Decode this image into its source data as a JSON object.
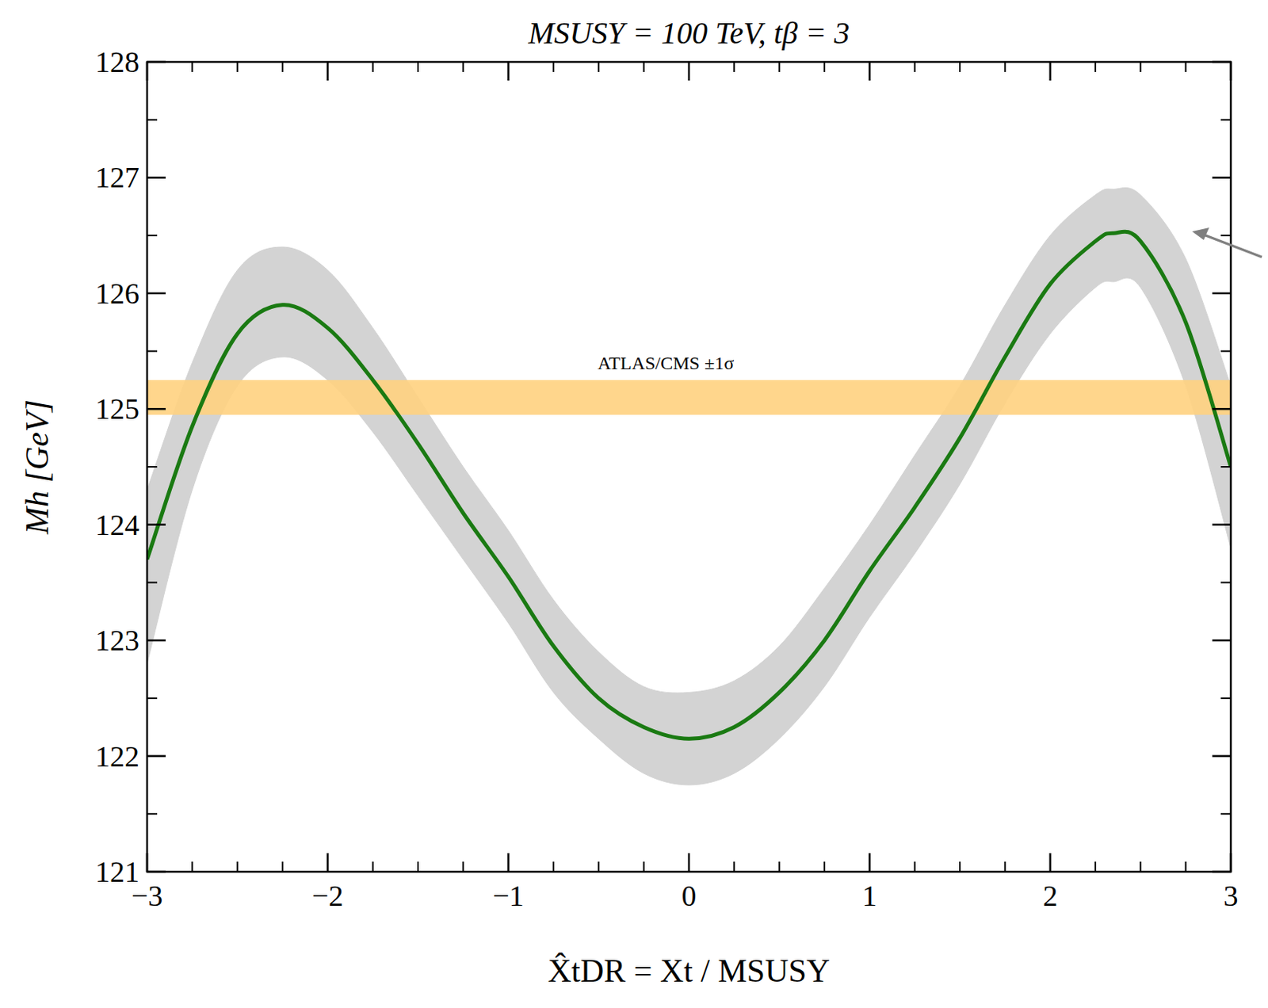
{
  "chart_data": {
    "type": "line",
    "title": "MSUSY = 100 TeV, tβ = 3",
    "x_label": "X̂tDR = Xt / MSUSY",
    "y_label": "Mh [GeV]",
    "x": [
      -3,
      -2.75,
      -2.5,
      -2.25,
      -2,
      -1.75,
      -1.5,
      -1.25,
      -1,
      -0.75,
      -0.5,
      -0.25,
      0,
      0.25,
      0.5,
      0.75,
      1,
      1.25,
      1.5,
      1.75,
      2,
      2.25,
      2.35,
      2.5,
      2.75,
      3
    ],
    "series": [
      {
        "type": "area",
        "color": "#d3d3d3",
        "upper": [
          124.3,
          125.4,
          126.2,
          126.4,
          126.2,
          125.7,
          125.1,
          124.5,
          123.95,
          123.35,
          122.9,
          122.6,
          122.55,
          122.65,
          122.95,
          123.45,
          124.0,
          124.6,
          125.2,
          125.9,
          126.5,
          126.85,
          126.9,
          126.85,
          126.3,
          125.2
        ],
        "lower": [
          122.8,
          124.3,
          125.2,
          125.45,
          125.25,
          124.8,
          124.25,
          123.7,
          123.15,
          122.55,
          122.15,
          121.85,
          121.75,
          121.85,
          122.15,
          122.6,
          123.2,
          123.75,
          124.35,
          125.05,
          125.65,
          126.05,
          126.1,
          126.05,
          125.2,
          123.8
        ]
      },
      {
        "type": "line",
        "color": "#1a7a12",
        "values": [
          123.7,
          124.85,
          125.65,
          125.9,
          125.7,
          125.25,
          124.7,
          124.1,
          123.55,
          122.95,
          122.5,
          122.25,
          122.15,
          122.25,
          122.55,
          123.0,
          123.6,
          124.15,
          124.75,
          125.45,
          126.08,
          126.45,
          126.52,
          126.45,
          125.75,
          124.5
        ]
      }
    ],
    "annotations": [
      {
        "text": "ATLAS/CMS ±1σ",
        "y_range": [
          124.95,
          125.25
        ],
        "color": "#ffd27f"
      }
    ],
    "xlim": [
      -3,
      3
    ],
    "xticks": [
      -3,
      -2,
      -1,
      0,
      1,
      2,
      3
    ],
    "ylim": [
      121,
      128
    ],
    "yticks": [
      121,
      122,
      123,
      124,
      125,
      126,
      127,
      128
    ],
    "grid": false
  }
}
